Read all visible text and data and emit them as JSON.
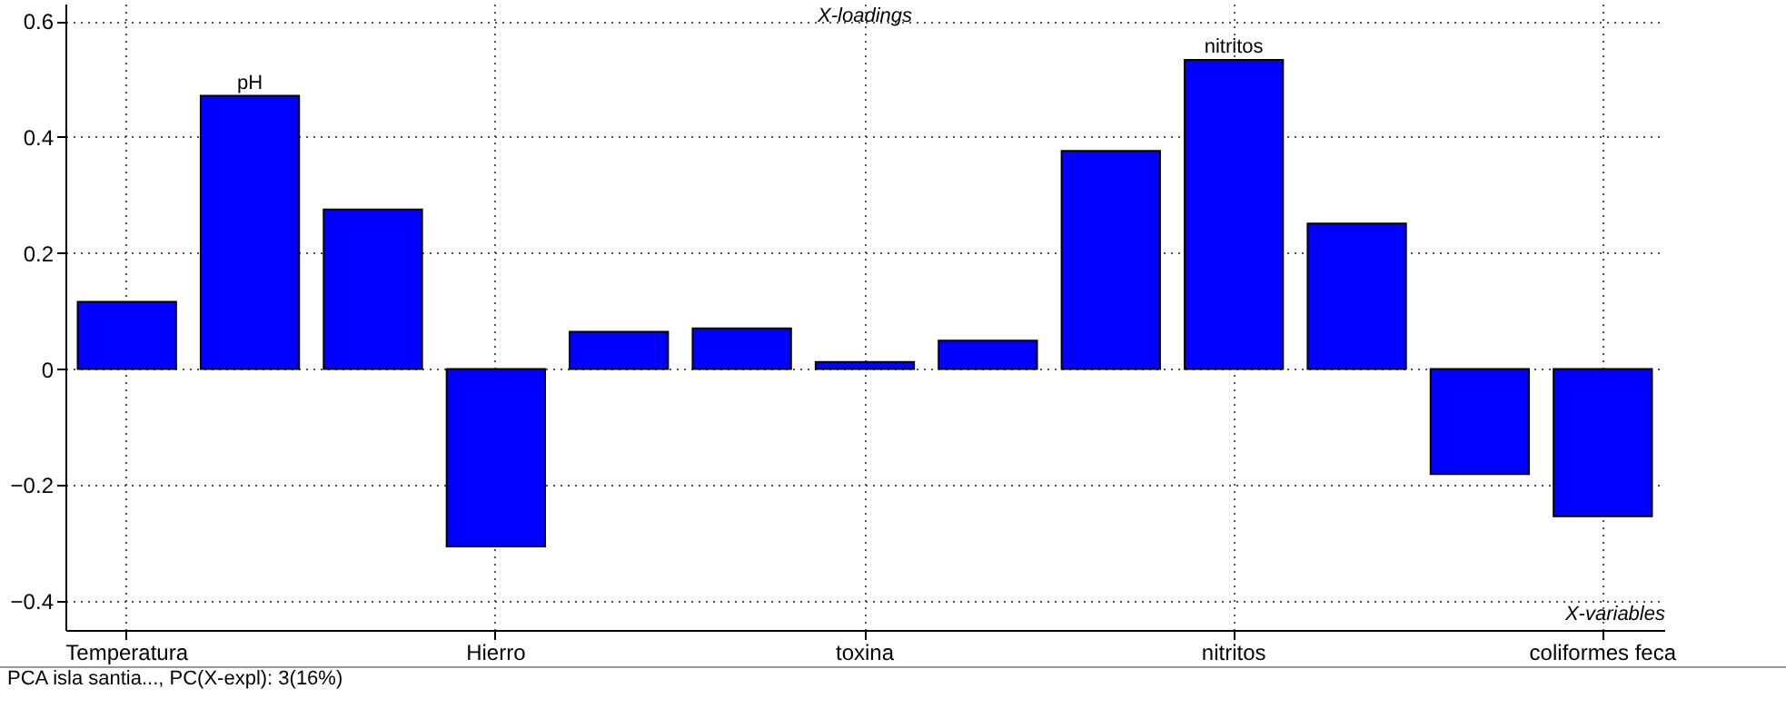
{
  "chart_data": {
    "type": "bar",
    "title": "X-loadings",
    "xlabel": "X-variables",
    "categories": [
      "Temperatura",
      null,
      null,
      "Hierro",
      null,
      null,
      "toxina",
      null,
      null,
      "nitritos",
      null,
      null,
      "coliformes feca"
    ],
    "values": [
      0.116,
      0.471,
      0.275,
      -0.306,
      0.064,
      0.07,
      0.012,
      0.049,
      0.376,
      0.533,
      0.251,
      -0.181,
      -0.254
    ],
    "color": "#0000ff",
    "ylim": [
      -0.45,
      0.63
    ],
    "yticks": [
      -0.4,
      -0.2,
      0,
      0.2,
      0.4,
      0.6
    ],
    "grid": true,
    "annotations": [
      {
        "text": "pH",
        "y": 0.471
      },
      {
        "text": "nitritos",
        "x": "nitritos",
        "y": 0.533
      },
      "PCA isla santia..., PC(X-expl): 3(16%)"
    ]
  }
}
